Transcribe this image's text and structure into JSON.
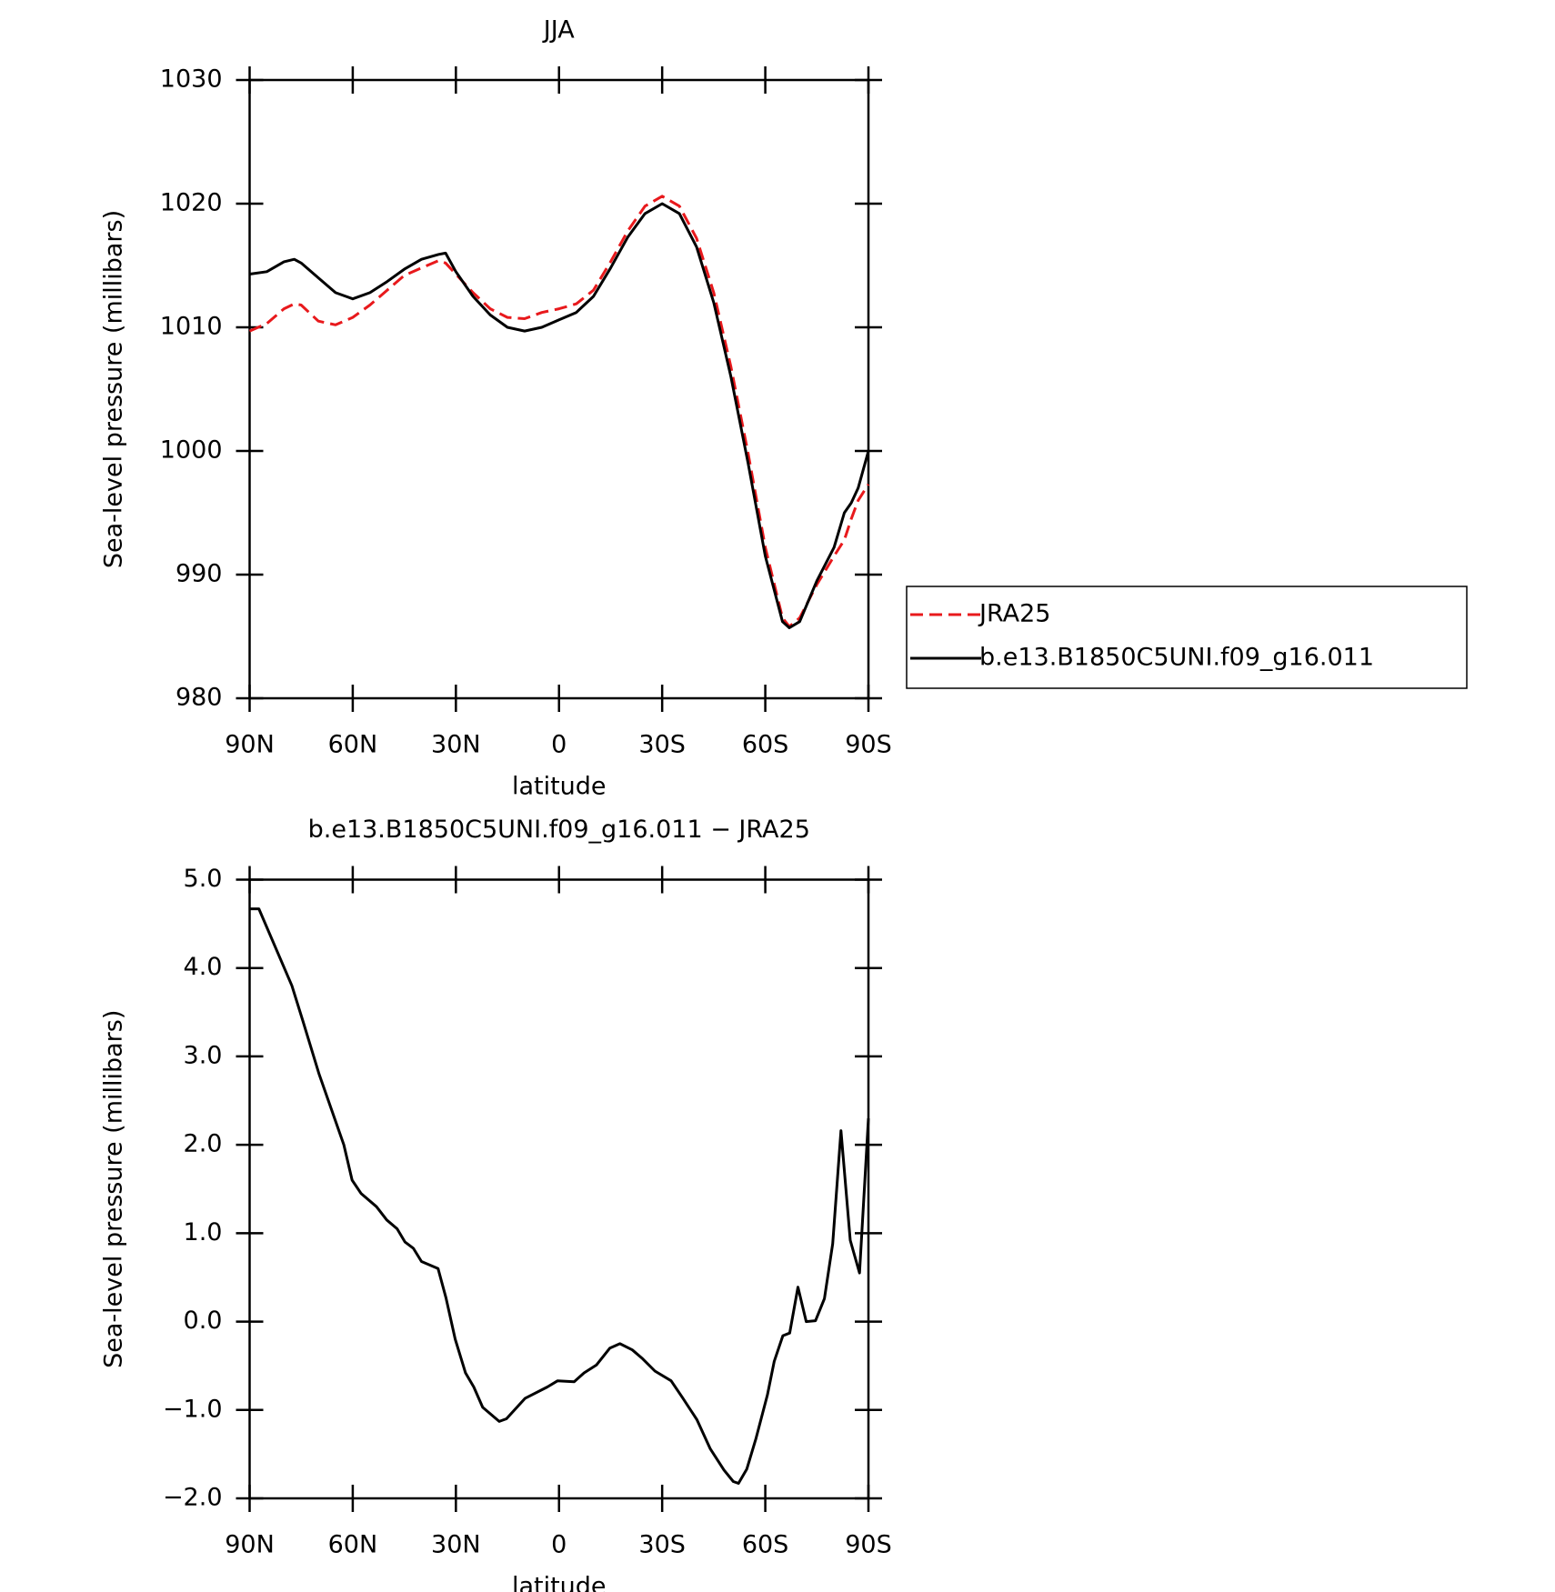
{
  "chart_data": [
    {
      "type": "line",
      "title": "JJA",
      "x_label": "latitude",
      "y_label": "Sea-level pressure (millibars)",
      "x": [
        90,
        85,
        80,
        77,
        75,
        70,
        65,
        60,
        55,
        50,
        45,
        40,
        35,
        33,
        30,
        25,
        20,
        15,
        10,
        5,
        0,
        -5,
        -10,
        -15,
        -20,
        -25,
        -30,
        -35,
        -40,
        -45,
        -50,
        -55,
        -60,
        -65,
        -67,
        -70,
        -75,
        -80,
        -83,
        -85,
        -87,
        -90
      ],
      "series": [
        {
          "name": "JRA25",
          "color": "#e8191c",
          "dashed": true,
          "values": [
            1009.7,
            1010.3,
            1011.5,
            1011.9,
            1011.8,
            1010.5,
            1010.2,
            1010.8,
            1011.8,
            1013.0,
            1014.2,
            1014.8,
            1015.4,
            1015.2,
            1014.3,
            1012.8,
            1011.5,
            1010.8,
            1010.7,
            1011.2,
            1011.5,
            1011.9,
            1013.0,
            1015.3,
            1017.8,
            1019.8,
            1020.6,
            1019.8,
            1017.2,
            1012.8,
            1006.8,
            999.8,
            992.2,
            986.5,
            985.8,
            986.5,
            989.2,
            991.5,
            992.8,
            994.5,
            996.0,
            997.3
          ]
        },
        {
          "name": "b.e13.B1850C5UNI.f09_g16.011",
          "color": "#000000",
          "dashed": false,
          "values": [
            1014.3,
            1014.5,
            1015.3,
            1015.5,
            1015.2,
            1014.0,
            1012.8,
            1012.3,
            1012.8,
            1013.7,
            1014.7,
            1015.5,
            1015.9,
            1016.0,
            1014.5,
            1012.5,
            1011.0,
            1010.0,
            1009.7,
            1010.0,
            1010.6,
            1011.2,
            1012.5,
            1014.8,
            1017.3,
            1019.2,
            1020.0,
            1019.2,
            1016.5,
            1012.0,
            1006.0,
            999.0,
            991.5,
            986.2,
            985.7,
            986.2,
            989.5,
            992.2,
            995.0,
            995.8,
            997.0,
            1000.0
          ]
        }
      ],
      "xlim": [
        90,
        -90
      ],
      "xticks": [
        {
          "value": 90,
          "label": "90N"
        },
        {
          "value": 60,
          "label": "60N"
        },
        {
          "value": 30,
          "label": "30N"
        },
        0,
        {
          "value": -30,
          "label": "30S"
        },
        {
          "value": -60,
          "label": "60S"
        },
        {
          "value": -90,
          "label": "90S"
        }
      ],
      "ylim": [
        980,
        1030
      ],
      "yticks": [
        980,
        990,
        1000,
        1010,
        1020,
        1030
      ],
      "legend": "right"
    },
    {
      "type": "line",
      "title": "b.e13.B1850C5UNI.f09_g16.011 − JRA25",
      "x_label": "latitude",
      "y_label": "Sea-level pressure (millibars)",
      "x": [
        90,
        87.3,
        77.7,
        74.5,
        69.8,
        62.6,
        60.2,
        57.6,
        53.1,
        50.1,
        47.1,
        44.8,
        42.4,
        40,
        35.2,
        32.9,
        30.2,
        27.2,
        24.8,
        22.2,
        17.4,
        15.3,
        9.9,
        3.4,
        0.4,
        -4.4,
        -7.3,
        -10.9,
        -14.8,
        -17.7,
        -21.3,
        -24.3,
        -27.9,
        -32.6,
        -35.9,
        -40.1,
        -44,
        -48,
        -50.7,
        -52.2,
        -54.6,
        -57.3,
        -60.6,
        -62.6,
        -65.1,
        -67.1,
        -69.5,
        -71.9,
        -74.6,
        -77.2,
        -79.6,
        -82,
        -84.7,
        -87.4,
        -90
      ],
      "values": [
        4.67,
        4.67,
        3.8,
        3.4,
        2.8,
        2.0,
        1.6,
        1.45,
        1.3,
        1.15,
        1.05,
        0.9,
        0.83,
        0.68,
        0.6,
        0.27,
        -0.2,
        -0.58,
        -0.74,
        -0.97,
        -1.13,
        -1.1,
        -0.87,
        -0.74,
        -0.67,
        -0.68,
        -0.58,
        -0.49,
        -0.3,
        -0.25,
        -0.32,
        -0.42,
        -0.56,
        -0.67,
        -0.86,
        -1.11,
        -1.44,
        -1.68,
        -1.81,
        -1.83,
        -1.67,
        -1.32,
        -0.83,
        -0.45,
        -0.16,
        -0.13,
        0.39,
        0.0,
        0.01,
        0.26,
        0.88,
        2.16,
        0.92,
        0.55,
        2.3
      ],
      "color": "#000000",
      "xlim": [
        90,
        -90
      ],
      "xticks": [
        {
          "value": 90,
          "label": "90N"
        },
        {
          "value": 60,
          "label": "60N"
        },
        {
          "value": 30,
          "label": "30N"
        },
        0,
        {
          "value": -30,
          "label": "30S"
        },
        {
          "value": -60,
          "label": "60S"
        },
        {
          "value": -90,
          "label": "90S"
        }
      ],
      "ylim": [
        -2,
        5
      ],
      "yticks": [
        {
          "value": -2,
          "label": "−2.0"
        },
        {
          "value": -1,
          "label": "−1.0"
        },
        {
          "value": 0,
          "label": "0.0"
        },
        {
          "value": 1,
          "label": "1.0"
        },
        {
          "value": 2,
          "label": "2.0"
        },
        {
          "value": 3,
          "label": "3.0"
        },
        {
          "value": 4,
          "label": "4.0"
        },
        {
          "value": 5,
          "label": "5.0"
        }
      ]
    }
  ]
}
